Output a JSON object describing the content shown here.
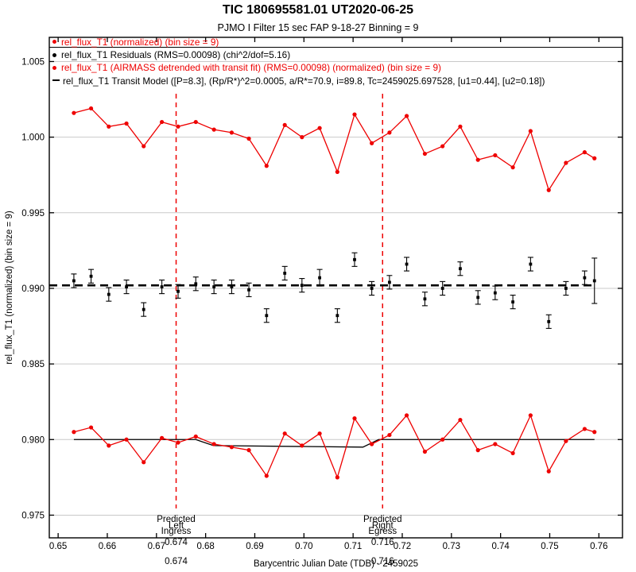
{
  "title": "TIC 180695581.01 UT2020-06-25",
  "subtitle": "PJMO I Filter 15 sec FAP 9-18-27 Binning = 9",
  "colors": {
    "red": "#ee0000",
    "black": "#000000",
    "gridline": "#c9c9c9",
    "gray_label": "#9a9a9a",
    "background": "#ffffff"
  },
  "legend": [
    {
      "label": "rel_flux_T1 (normalized) (bin size = 9)",
      "color": "#ee0000",
      "marker": "dot"
    },
    {
      "label": "rel_flux_T1 Residuals (RMS=0.00098) (chi^2/dof=5.16)",
      "color": "#000000",
      "marker": "dot"
    },
    {
      "label": "rel_flux_T1 (AIRMASS detrended with transit fit) (RMS=0.00098) (normalized) (bin size = 9)",
      "color": "#ee0000",
      "marker": "dot"
    },
    {
      "label": "rel_flux_T1 Transit Model ([P=8.3], (Rp/R*)^2=0.0005, a/R*=70.9, i=89.8, Tc=2459025.697528, [u1=0.44], [u2=0.18])",
      "color": "#000000",
      "marker": "dash"
    }
  ],
  "chart_data": {
    "type": "line",
    "title": "TIC 180695581.01 UT2020-06-25",
    "subtitle": "PJMO I Filter 15 sec FAP 9-18-27 Binning = 9",
    "xlabel": "Barycentric Julian Date (TDB) - 2459025",
    "ylabel": "rel_flux_T1 (normalized) (bin size = 9)",
    "xlim": [
      0.6482,
      0.7648
    ],
    "ylim": [
      0.9735,
      1.0066
    ],
    "grid": "horizontal-only",
    "xtick_values": [
      0.65,
      0.66,
      0.67,
      0.68,
      0.69,
      0.7,
      0.71,
      0.72,
      0.73,
      0.74,
      0.75,
      0.76
    ],
    "xtick_labels": [
      "0.65",
      "0.66",
      "0.67",
      "0.68",
      "0.69",
      "0.70",
      "0.71",
      "0.72",
      "0.73",
      "0.74",
      "0.75",
      "0.76"
    ],
    "ytick_values": [
      0.975,
      0.98,
      0.985,
      0.99,
      0.995,
      1.0,
      1.005
    ],
    "ytick_labels": [
      "0.975",
      "0.980",
      "0.985",
      "0.990",
      "0.995",
      "1.000",
      "1.005"
    ],
    "x": [
      0.6532,
      0.6567,
      0.6603,
      0.6639,
      0.6674,
      0.6711,
      0.6744,
      0.678,
      0.6817,
      0.6853,
      0.6888,
      0.6924,
      0.6961,
      0.6996,
      0.7032,
      0.7068,
      0.7103,
      0.7138,
      0.7174,
      0.7209,
      0.7246,
      0.7282,
      0.7318,
      0.7354,
      0.7389,
      0.7425,
      0.7461,
      0.7498,
      0.7533,
      0.7571,
      0.7591
    ],
    "series": [
      {
        "name": "rel_flux_T1 (normalized) (bin size = 9)",
        "color": "#ee0000",
        "marker": "circle",
        "line": true,
        "values": [
          1.0016,
          1.0019,
          1.0007,
          1.0009,
          0.9994,
          1.001,
          1.0007,
          1.001,
          1.0005,
          1.0003,
          0.9999,
          0.9981,
          1.0008,
          1.0,
          1.0006,
          0.9977,
          1.0015,
          0.9996,
          1.0003,
          1.0014,
          0.9989,
          0.9994,
          1.0007,
          0.9985,
          0.9988,
          0.998,
          1.0004,
          0.9965,
          0.9983,
          0.999,
          0.9986
        ]
      },
      {
        "name": "rel_flux_T1 Residuals (RMS=0.00098) (chi^2/dof=5.16)",
        "color": "#000000",
        "marker": "square",
        "line": false,
        "values": [
          0.9905,
          0.9908,
          0.9896,
          0.9901,
          0.9886,
          0.9901,
          0.9898,
          0.9903,
          0.9901,
          0.9901,
          0.9899,
          0.9882,
          0.991,
          0.9902,
          0.9907,
          0.9882,
          0.9919,
          0.99,
          0.9904,
          0.9916,
          0.9893,
          0.99,
          0.9913,
          0.9894,
          0.9897,
          0.9891,
          0.9916,
          0.9878,
          0.99,
          0.9907,
          0.9905
        ],
        "errors": [
          0.00045,
          0.00045,
          0.00045,
          0.00045,
          0.00045,
          0.00045,
          0.00045,
          0.00045,
          0.00045,
          0.00045,
          0.00045,
          0.00045,
          0.00045,
          0.00045,
          0.00055,
          0.00045,
          0.00045,
          0.00045,
          0.00045,
          0.00045,
          0.00045,
          0.00045,
          0.00045,
          0.00045,
          0.00045,
          0.00045,
          0.00045,
          0.00045,
          0.00045,
          0.00045,
          0.0015
        ]
      },
      {
        "name": "rel_flux_T1 (AIRMASS detrended with transit fit) (RMS=0.00098) (normalized) (bin size = 9)",
        "color": "#ee0000",
        "marker": "circle",
        "line": true,
        "values": [
          0.9805,
          0.9808,
          0.9796,
          0.98,
          0.9785,
          0.9801,
          0.9798,
          0.9802,
          0.9797,
          0.9795,
          0.9793,
          0.9776,
          0.9804,
          0.9796,
          0.9804,
          0.9775,
          0.9814,
          0.9797,
          0.9803,
          0.9816,
          0.9792,
          0.98,
          0.9813,
          0.9793,
          0.9797,
          0.9791,
          0.9816,
          0.9779,
          0.9799,
          0.9807,
          0.9805
        ]
      }
    ],
    "residual_baseline": 0.9902,
    "model_line": [
      [
        0.6532,
        0.98
      ],
      [
        0.678,
        0.98
      ],
      [
        0.6816,
        0.9796
      ],
      [
        0.712,
        0.9795
      ],
      [
        0.7152,
        0.98
      ],
      [
        0.7591,
        0.98
      ]
    ],
    "vertical_markers": [
      {
        "value": 0.674,
        "red_line1": "Predicted",
        "red_line2": "Ingress",
        "gray_word": "Left",
        "gray_value": "0.674",
        "red_value": "0.674"
      },
      {
        "value": 0.716,
        "red_line1": "Predicted",
        "red_line2": "Egress",
        "gray_word": "Right",
        "gray_value": "0.716",
        "red_value": "0.716"
      }
    ]
  }
}
